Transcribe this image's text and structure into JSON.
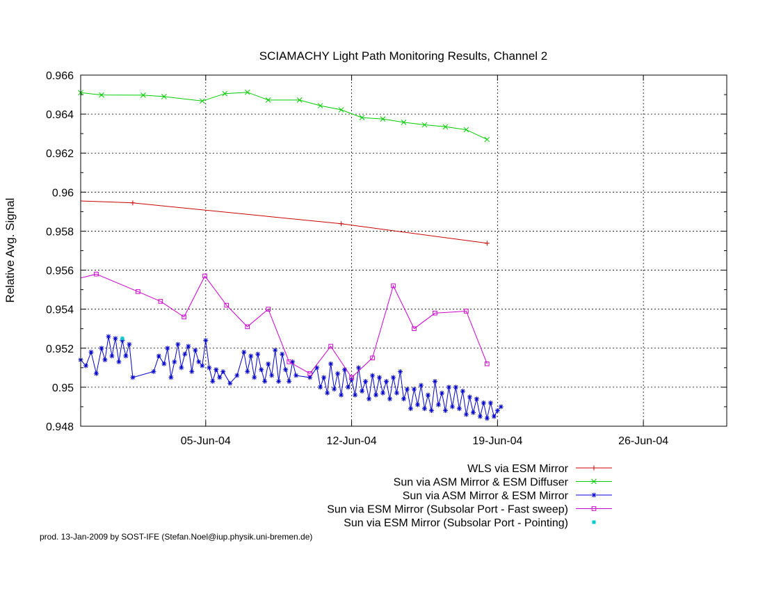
{
  "chart_data": {
    "type": "line",
    "title": "SCIAMACHY Light Path Monitoring Results, Channel 2",
    "ylabel": "Relative Avg. Signal",
    "xlabel": "",
    "x_unit": "date",
    "xlim": [
      "2004-05-30T00:00",
      "2004-06-30T00:00"
    ],
    "ylim": [
      0.948,
      0.966
    ],
    "x_ticks": [
      {
        "date": "2004-06-05",
        "label": "05-Jun-04"
      },
      {
        "date": "2004-06-12",
        "label": "12-Jun-04"
      },
      {
        "date": "2004-06-19",
        "label": "19-Jun-04"
      },
      {
        "date": "2004-06-26",
        "label": "26-Jun-04"
      }
    ],
    "y_ticks": [
      {
        "value": 0.948,
        "label": "0.948"
      },
      {
        "value": 0.95,
        "label": "0.95"
      },
      {
        "value": 0.952,
        "label": "0.952"
      },
      {
        "value": 0.954,
        "label": "0.954"
      },
      {
        "value": 0.956,
        "label": "0.956"
      },
      {
        "value": 0.958,
        "label": "0.958"
      },
      {
        "value": 0.96,
        "label": "0.96"
      },
      {
        "value": 0.962,
        "label": "0.962"
      },
      {
        "value": 0.964,
        "label": "0.964"
      },
      {
        "value": 0.966,
        "label": "0.966"
      }
    ],
    "grid": "major x and y, dashed",
    "legend_position": "below plot, right-aligned",
    "series": [
      {
        "name": "WLS via ESM Mirror",
        "color": "#cc0000",
        "marker": "plus",
        "points": [
          [
            "2004-05-30T00:00",
            0.95955
          ],
          [
            "2004-06-01T12:00",
            0.95945
          ],
          [
            "2004-06-11T12:00",
            0.95838
          ],
          [
            "2004-06-18T12:00",
            0.95738
          ]
        ],
        "marked": [
          1,
          2,
          3
        ]
      },
      {
        "name": "Sun via ASM Mirror & ESM Diffuser",
        "color": "#00cc00",
        "marker": "cross",
        "points": [
          [
            "2004-05-30T00:00",
            0.9651
          ],
          [
            "2004-05-31T00:00",
            0.96498
          ],
          [
            "2004-06-02T00:00",
            0.96497
          ],
          [
            "2004-06-03T00:00",
            0.9649
          ],
          [
            "2004-06-04T20:00",
            0.96467
          ],
          [
            "2004-06-05T22:00",
            0.96505
          ],
          [
            "2004-06-07T00:00",
            0.96512
          ],
          [
            "2004-06-08T00:00",
            0.96472
          ],
          [
            "2004-06-09T12:00",
            0.96472
          ],
          [
            "2004-06-10T12:00",
            0.96443
          ],
          [
            "2004-06-11T12:00",
            0.96422
          ],
          [
            "2004-06-12T12:00",
            0.96382
          ],
          [
            "2004-06-13T12:00",
            0.96375
          ],
          [
            "2004-06-14T12:00",
            0.96358
          ],
          [
            "2004-06-15T12:00",
            0.96345
          ],
          [
            "2004-06-16T12:00",
            0.96335
          ],
          [
            "2004-06-17T12:00",
            0.9632
          ],
          [
            "2004-06-18T12:00",
            0.9627
          ]
        ]
      },
      {
        "name": "Sun via ASM Mirror & ESM Mirror",
        "color": "#0000cc",
        "marker": "star",
        "points": [
          [
            "2004-05-30T00:00",
            0.9514
          ],
          [
            "2004-05-30T06:00",
            0.9511
          ],
          [
            "2004-05-30T12:00",
            0.9518
          ],
          [
            "2004-05-30T18:00",
            0.9507
          ],
          [
            "2004-05-31T00:00",
            0.952
          ],
          [
            "2004-05-31T04:00",
            0.9514
          ],
          [
            "2004-05-31T08:00",
            0.9526
          ],
          [
            "2004-05-31T12:00",
            0.9516
          ],
          [
            "2004-05-31T16:00",
            0.9525
          ],
          [
            "2004-05-31T20:00",
            0.9513
          ],
          [
            "2004-06-01T00:00",
            0.9524
          ],
          [
            "2004-06-01T04:00",
            0.9516
          ],
          [
            "2004-06-01T08:00",
            0.9522
          ],
          [
            "2004-06-01T12:00",
            0.9505
          ],
          [
            "2004-06-02T12:00",
            0.9508
          ],
          [
            "2004-06-02T18:00",
            0.9516
          ],
          [
            "2004-06-03T00:00",
            0.9512
          ],
          [
            "2004-06-03T04:00",
            0.952
          ],
          [
            "2004-06-03T08:00",
            0.9505
          ],
          [
            "2004-06-03T12:00",
            0.9513
          ],
          [
            "2004-06-03T16:00",
            0.9522
          ],
          [
            "2004-06-03T20:00",
            0.951
          ],
          [
            "2004-06-04T00:00",
            0.9517
          ],
          [
            "2004-06-04T04:00",
            0.9521
          ],
          [
            "2004-06-04T08:00",
            0.9508
          ],
          [
            "2004-06-04T12:00",
            0.9519
          ],
          [
            "2004-06-04T16:00",
            0.9513
          ],
          [
            "2004-06-04T20:00",
            0.9511
          ],
          [
            "2004-06-05T00:00",
            0.9524
          ],
          [
            "2004-06-05T04:00",
            0.951
          ],
          [
            "2004-06-05T08:00",
            0.9503
          ],
          [
            "2004-06-05T12:00",
            0.9509
          ],
          [
            "2004-06-05T16:00",
            0.9505
          ],
          [
            "2004-06-05T20:00",
            0.9508
          ],
          [
            "2004-06-06T04:00",
            0.9502
          ],
          [
            "2004-06-06T12:00",
            0.9506
          ],
          [
            "2004-06-06T20:00",
            0.9518
          ],
          [
            "2004-06-07T00:00",
            0.9508
          ],
          [
            "2004-06-07T04:00",
            0.9516
          ],
          [
            "2004-06-07T08:00",
            0.9505
          ],
          [
            "2004-06-07T12:00",
            0.9517
          ],
          [
            "2004-06-07T16:00",
            0.9509
          ],
          [
            "2004-06-07T20:00",
            0.9503
          ],
          [
            "2004-06-08T00:00",
            0.9512
          ],
          [
            "2004-06-08T04:00",
            0.9506
          ],
          [
            "2004-06-08T08:00",
            0.9519
          ],
          [
            "2004-06-08T12:00",
            0.9503
          ],
          [
            "2004-06-08T16:00",
            0.9517
          ],
          [
            "2004-06-08T20:00",
            0.9509
          ],
          [
            "2004-06-09T00:00",
            0.9503
          ],
          [
            "2004-06-09T04:00",
            0.9513
          ],
          [
            "2004-06-09T08:00",
            0.9506
          ],
          [
            "2004-06-10T00:00",
            0.9505
          ],
          [
            "2004-06-10T08:00",
            0.951
          ],
          [
            "2004-06-10T12:00",
            0.95
          ],
          [
            "2004-06-10T16:00",
            0.9505
          ],
          [
            "2004-06-10T20:00",
            0.9497
          ],
          [
            "2004-06-11T00:00",
            0.9512
          ],
          [
            "2004-06-11T04:00",
            0.9499
          ],
          [
            "2004-06-11T08:00",
            0.9507
          ],
          [
            "2004-06-11T12:00",
            0.9496
          ],
          [
            "2004-06-11T16:00",
            0.9509
          ],
          [
            "2004-06-11T20:00",
            0.95
          ],
          [
            "2004-06-12T00:00",
            0.9504
          ],
          [
            "2004-06-12T04:00",
            0.9496
          ],
          [
            "2004-06-12T08:00",
            0.951
          ],
          [
            "2004-06-12T12:00",
            0.9498
          ],
          [
            "2004-06-12T16:00",
            0.9503
          ],
          [
            "2004-06-12T20:00",
            0.9494
          ],
          [
            "2004-06-13T00:00",
            0.9506
          ],
          [
            "2004-06-13T04:00",
            0.9496
          ],
          [
            "2004-06-13T08:00",
            0.9505
          ],
          [
            "2004-06-13T12:00",
            0.9497
          ],
          [
            "2004-06-13T16:00",
            0.9503
          ],
          [
            "2004-06-13T20:00",
            0.9494
          ],
          [
            "2004-06-14T00:00",
            0.9505
          ],
          [
            "2004-06-14T04:00",
            0.9497
          ],
          [
            "2004-06-14T08:00",
            0.9508
          ],
          [
            "2004-06-14T12:00",
            0.9494
          ],
          [
            "2004-06-14T16:00",
            0.9499
          ],
          [
            "2004-06-14T20:00",
            0.9489
          ],
          [
            "2004-06-15T00:00",
            0.9499
          ],
          [
            "2004-06-15T04:00",
            0.9491
          ],
          [
            "2004-06-15T08:00",
            0.9501
          ],
          [
            "2004-06-15T12:00",
            0.9489
          ],
          [
            "2004-06-15T16:00",
            0.9496
          ],
          [
            "2004-06-15T20:00",
            0.9488
          ],
          [
            "2004-06-16T00:00",
            0.9503
          ],
          [
            "2004-06-16T04:00",
            0.9491
          ],
          [
            "2004-06-16T08:00",
            0.9497
          ],
          [
            "2004-06-16T12:00",
            0.9488
          ],
          [
            "2004-06-16T16:00",
            0.95
          ],
          [
            "2004-06-16T20:00",
            0.949
          ],
          [
            "2004-06-17T00:00",
            0.95
          ],
          [
            "2004-06-17T04:00",
            0.9489
          ],
          [
            "2004-06-17T08:00",
            0.9498
          ],
          [
            "2004-06-17T12:00",
            0.9486
          ],
          [
            "2004-06-17T16:00",
            0.9495
          ],
          [
            "2004-06-17T20:00",
            0.9487
          ],
          [
            "2004-06-18T00:00",
            0.9494
          ],
          [
            "2004-06-18T04:00",
            0.9485
          ],
          [
            "2004-06-18T08:00",
            0.9492
          ],
          [
            "2004-06-18T12:00",
            0.9484
          ],
          [
            "2004-06-18T16:00",
            0.9492
          ],
          [
            "2004-06-18T20:00",
            0.9485
          ],
          [
            "2004-06-19T00:00",
            0.9488
          ],
          [
            "2004-06-19T04:00",
            0.949
          ]
        ]
      },
      {
        "name": "Sun via ESM Mirror (Subsolar Port - Fast sweep)",
        "color": "#cc00cc",
        "marker": "square",
        "points": [
          [
            "2004-05-30T00:00",
            0.9556
          ],
          [
            "2004-05-30T18:00",
            0.9558
          ],
          [
            "2004-06-01T18:00",
            0.9549
          ],
          [
            "2004-06-02T20:00",
            0.9544
          ],
          [
            "2004-06-03T23:00",
            0.9536
          ],
          [
            "2004-06-04T23:00",
            0.9557
          ],
          [
            "2004-06-06T00:00",
            0.9542
          ],
          [
            "2004-06-07T00:00",
            0.9531
          ],
          [
            "2004-06-08T00:00",
            0.954
          ],
          [
            "2004-06-09T00:00",
            0.9513
          ],
          [
            "2004-06-10T00:00",
            0.9507
          ],
          [
            "2004-06-11T00:00",
            0.9521
          ],
          [
            "2004-06-12T00:00",
            0.9505
          ],
          [
            "2004-06-13T00:00",
            0.9515
          ],
          [
            "2004-06-14T00:00",
            0.9552
          ],
          [
            "2004-06-15T00:00",
            0.953
          ],
          [
            "2004-06-16T00:00",
            0.9538
          ],
          [
            "2004-06-17T12:00",
            0.9539
          ],
          [
            "2004-06-18T12:00",
            0.9512
          ]
        ],
        "marked": [
          1,
          2,
          3,
          4,
          5,
          6,
          7,
          8,
          9,
          10,
          11,
          12,
          13,
          14,
          15,
          16,
          17,
          18
        ]
      },
      {
        "name": "Sun via ESM Mirror (Subsolar Port - Pointing)",
        "color": "#00cccc",
        "marker": "dot",
        "points": [
          [
            "2004-06-01T00:00",
            0.9525
          ]
        ]
      }
    ]
  },
  "footer": "prod. 13-Jan-2009 by SOST-IFE (Stefan.Noel@iup.physik.uni-bremen.de)"
}
